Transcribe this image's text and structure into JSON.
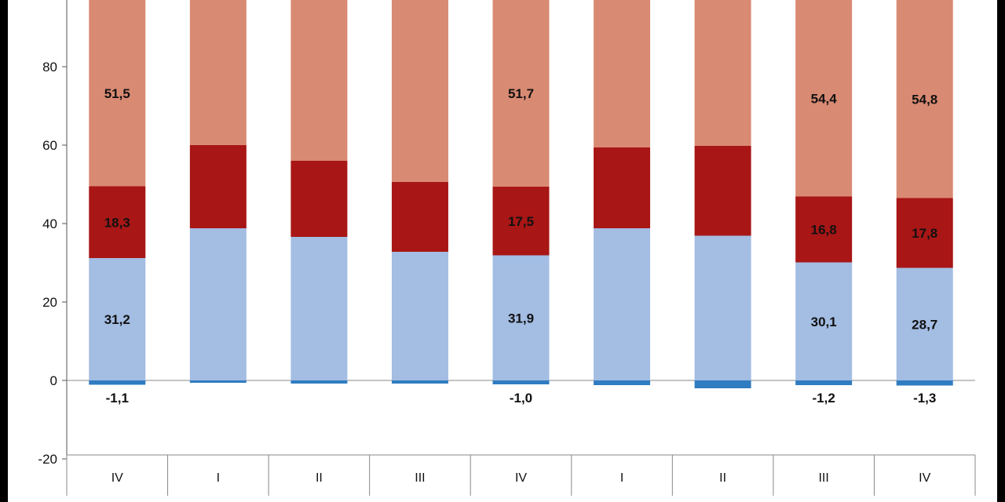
{
  "chart_data": {
    "type": "bar",
    "stacked": true,
    "categories": [
      "IV",
      "I",
      "II",
      "III",
      "IV",
      "I",
      "II",
      "III",
      "IV"
    ],
    "series": [
      {
        "color": "#a3bde3",
        "values": [
          31.2,
          38.8,
          36.6,
          32.8,
          31.9,
          38.8,
          36.9,
          30.1,
          28.7
        ],
        "labels": [
          "31,2",
          "",
          "",
          "",
          "31,9",
          "",
          "",
          "30,1",
          "28,7"
        ]
      },
      {
        "color": "#a81616",
        "values": [
          18.3,
          21.2,
          19.4,
          17.8,
          17.5,
          20.6,
          22.9,
          16.8,
          17.8
        ],
        "labels": [
          "18,3",
          "",
          "",
          "",
          "17,5",
          "",
          "",
          "16,8",
          "17,8"
        ]
      },
      {
        "color": "#d98a73",
        "values": [
          51.5,
          41.0,
          45.0,
          50.6,
          51.7,
          41.8,
          42.2,
          54.4,
          54.8
        ],
        "labels": [
          "51,5",
          "",
          "",
          "",
          "51,7",
          "",
          "",
          "54,4",
          "54,8"
        ]
      },
      {
        "color": "#2f7cc0",
        "values": [
          -1.1,
          -0.6,
          -0.8,
          -0.8,
          -1.0,
          -1.2,
          -2.0,
          -1.2,
          -1.3
        ],
        "labels": [
          "-1,1",
          "",
          "",
          "",
          "-1,0",
          "",
          "",
          "-1,2",
          "-1,3"
        ]
      }
    ],
    "yticks": [
      -20,
      0,
      20,
      40,
      60,
      80
    ],
    "ytick_labels": [
      "-20",
      "0",
      "20",
      "40",
      "60",
      "80"
    ],
    "ylim": [
      -30,
      100
    ],
    "xlabel": "",
    "ylabel": "",
    "grid": false,
    "legend": "none"
  }
}
